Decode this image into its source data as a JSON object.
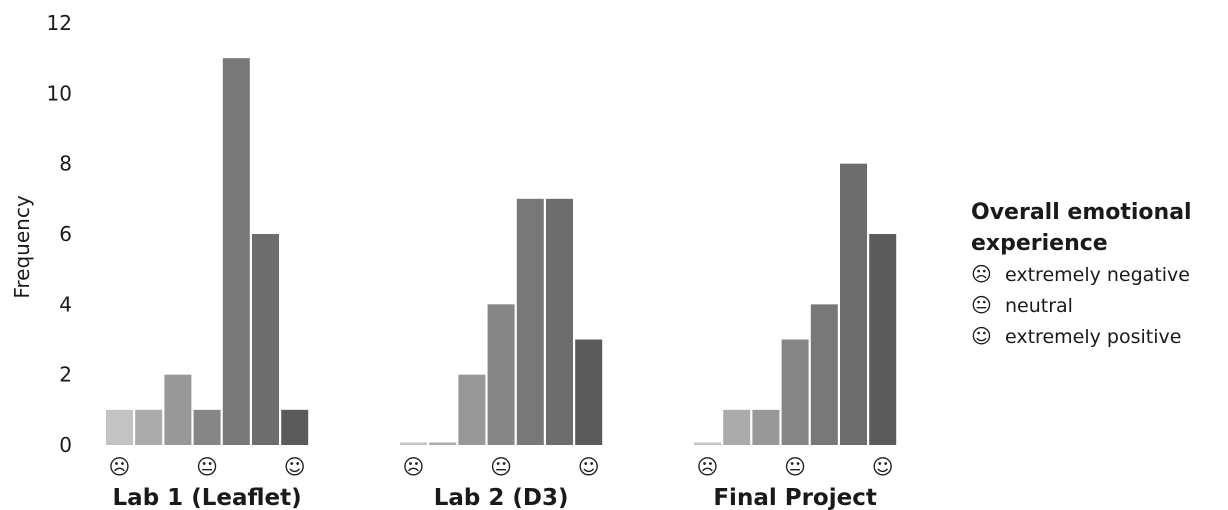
{
  "chart_data": {
    "type": "bar",
    "ylabel": "Frequency",
    "ylim": [
      0,
      12
    ],
    "yticks": [
      0,
      2,
      4,
      6,
      8,
      10,
      12
    ],
    "grid": false,
    "categories": [
      1,
      2,
      3,
      4,
      5,
      6,
      7
    ],
    "category_symbols": [
      "☹",
      "😐",
      "☺"
    ],
    "bar_colors": [
      "#c3c3c3",
      "#ababab",
      "#989898",
      "#868686",
      "#787878",
      "#6d6d6d",
      "#5b5b5b"
    ],
    "panels": [
      {
        "title": "Lab 1 (Leaflet)",
        "values": [
          1,
          1,
          2,
          1,
          11,
          6,
          1
        ]
      },
      {
        "title": "Lab 2 (D3)",
        "values": [
          0,
          0,
          2,
          4,
          7,
          7,
          3
        ]
      },
      {
        "title": "Final Project",
        "values": [
          0,
          1,
          1,
          3,
          4,
          8,
          6
        ]
      }
    ]
  },
  "legend": {
    "title_line1": "Overall emotional",
    "title_line2": "experience",
    "items": [
      {
        "symbol": "☹",
        "label": "extremely negative"
      },
      {
        "symbol": "😐",
        "label": "neutral"
      },
      {
        "symbol": "☺",
        "label": "extremely positive"
      }
    ]
  }
}
